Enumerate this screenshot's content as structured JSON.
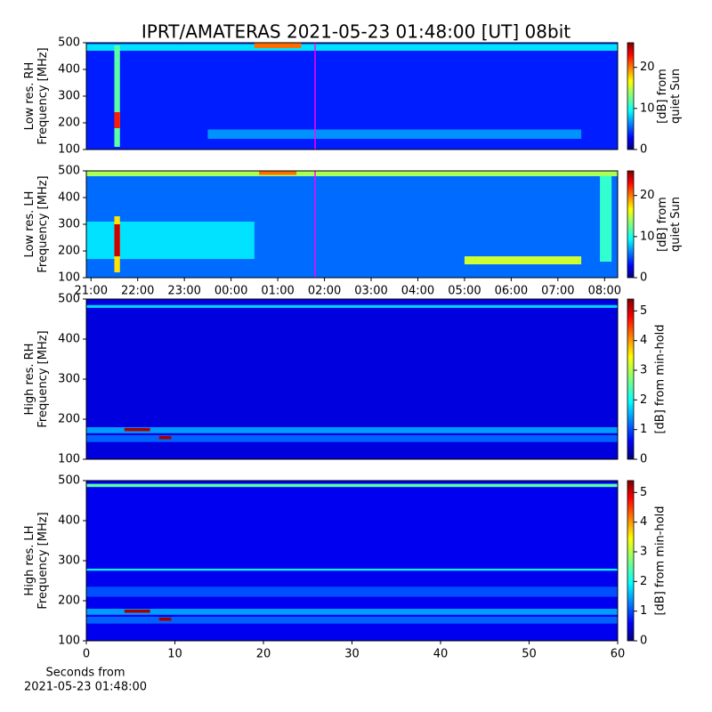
{
  "title": "IPRT/AMATERAS 2021-05-23 01:48:00 [UT]   08bit",
  "chart_data": [
    {
      "type": "heatmap",
      "ylabel": [
        "Low res. RH",
        "Frequency [MHz]"
      ],
      "ylim": [
        100,
        500
      ],
      "yticks": [
        100,
        200,
        300,
        400,
        500
      ],
      "xlim": [
        20.9,
        32.28
      ],
      "cursor": {
        "x": 25.8,
        "color": "#ff00ff"
      },
      "colorbar": {
        "label": [
          "[dB] from",
          "quiet Sun"
        ],
        "lim": [
          0,
          26
        ],
        "ticks": [
          0,
          10,
          20
        ]
      },
      "base": 4,
      "cells": [
        {
          "x": [
            20.9,
            32.28
          ],
          "y": [
            470,
            495
          ],
          "value": 9
        },
        {
          "x": [
            23.5,
            31.5
          ],
          "y": [
            140,
            175
          ],
          "value": 7
        },
        {
          "x": [
            24.5,
            25.5
          ],
          "y": [
            480,
            500
          ],
          "value": 20
        },
        {
          "x": [
            21.5,
            21.62
          ],
          "y": [
            110,
            490
          ],
          "value": 12
        },
        {
          "x": [
            21.5,
            21.62
          ],
          "y": [
            180,
            240
          ],
          "value": 22
        }
      ]
    },
    {
      "type": "heatmap",
      "ylabel": [
        "Low res. LH",
        "Frequency [MHz]"
      ],
      "ylim": [
        100,
        500
      ],
      "yticks": [
        100,
        200,
        300,
        400,
        500
      ],
      "xlim": [
        20.9,
        32.28
      ],
      "cursor": {
        "x": 25.8,
        "color": "#ff00ff"
      },
      "xticks": [
        {
          "value": 21,
          "label": "21:00"
        },
        {
          "value": 22,
          "label": "22:00"
        },
        {
          "value": 23,
          "label": "23:00"
        },
        {
          "value": 24,
          "label": "00:00"
        },
        {
          "value": 25,
          "label": "01:00"
        },
        {
          "value": 26,
          "label": "02:00"
        },
        {
          "value": 27,
          "label": "03:00"
        },
        {
          "value": 28,
          "label": "04:00"
        },
        {
          "value": 29,
          "label": "05:00"
        },
        {
          "value": 30,
          "label": "06:00"
        },
        {
          "value": 31,
          "label": "07:00"
        },
        {
          "value": 32,
          "label": "08:00"
        }
      ],
      "colorbar": {
        "label": [
          "[dB] from",
          "quiet Sun"
        ],
        "lim": [
          0,
          26
        ],
        "ticks": [
          0,
          10,
          20
        ]
      },
      "base": 6,
      "cells": [
        {
          "x": [
            20.9,
            24.5
          ],
          "y": [
            170,
            310
          ],
          "value": 9
        },
        {
          "x": [
            29,
            31.5
          ],
          "y": [
            150,
            180
          ],
          "value": 15
        },
        {
          "x": [
            20.9,
            32.28
          ],
          "y": [
            480,
            500
          ],
          "value": 14
        },
        {
          "x": [
            24.6,
            25.4
          ],
          "y": [
            485,
            500
          ],
          "value": 20
        },
        {
          "x": [
            31.9,
            32.15
          ],
          "y": [
            160,
            480
          ],
          "value": 11
        },
        {
          "x": [
            21.5,
            21.62
          ],
          "y": [
            120,
            330
          ],
          "value": 17
        },
        {
          "x": [
            21.5,
            21.62
          ],
          "y": [
            180,
            300
          ],
          "value": 24
        }
      ]
    },
    {
      "type": "heatmap",
      "ylabel": [
        "High res. RH",
        "Frequency [MHz]"
      ],
      "ylim": [
        100,
        500
      ],
      "yticks": [
        100,
        200,
        300,
        400,
        500
      ],
      "xlim": [
        0,
        60
      ],
      "colorbar": {
        "label": [
          "[dB] from min-hold"
        ],
        "lim": [
          0,
          5.4
        ],
        "ticks": [
          0,
          1,
          2,
          3,
          4,
          5
        ]
      },
      "base": 0.5,
      "cells": [
        {
          "x": [
            0,
            60
          ],
          "y": [
            165,
            180
          ],
          "value": 1.5
        },
        {
          "x": [
            0,
            60
          ],
          "y": [
            143,
            160
          ],
          "value": 1.2
        },
        {
          "x": [
            0,
            60
          ],
          "y": [
            478,
            485
          ],
          "value": 1.8
        },
        {
          "x": [
            4.3,
            7.2
          ],
          "y": [
            170,
            178
          ],
          "value": 5.2
        },
        {
          "x": [
            8.2,
            9.6
          ],
          "y": [
            150,
            158
          ],
          "value": 5.2
        }
      ]
    },
    {
      "type": "heatmap",
      "ylabel": [
        "High res. LH",
        "Frequency [MHz]"
      ],
      "ylim": [
        100,
        500
      ],
      "yticks": [
        100,
        200,
        300,
        400,
        500
      ],
      "xlim": [
        0,
        60
      ],
      "xticks": [
        0,
        10,
        20,
        30,
        40,
        50,
        60
      ],
      "xlabel": [
        "Seconds from",
        "2021-05-23 01:48:00"
      ],
      "colorbar": {
        "label": [
          "[dB] from min-hold"
        ],
        "lim": [
          0,
          5.4
        ],
        "ticks": [
          0,
          1,
          2,
          3,
          4,
          5
        ]
      },
      "base": 0.6,
      "cells": [
        {
          "x": [
            0,
            60
          ],
          "y": [
            165,
            180
          ],
          "value": 1.5
        },
        {
          "x": [
            0,
            60
          ],
          "y": [
            143,
            160
          ],
          "value": 1.2
        },
        {
          "x": [
            0,
            60
          ],
          "y": [
            484,
            492
          ],
          "value": 2.5
        },
        {
          "x": [
            0,
            60
          ],
          "y": [
            275,
            280
          ],
          "value": 2
        },
        {
          "x": [
            0,
            60
          ],
          "y": [
            210,
            235
          ],
          "value": 1.1
        },
        {
          "x": [
            4.3,
            7.2
          ],
          "y": [
            170,
            178
          ],
          "value": 5.2
        },
        {
          "x": [
            8.2,
            9.6
          ],
          "y": [
            150,
            158
          ],
          "value": 5.2
        }
      ]
    }
  ]
}
